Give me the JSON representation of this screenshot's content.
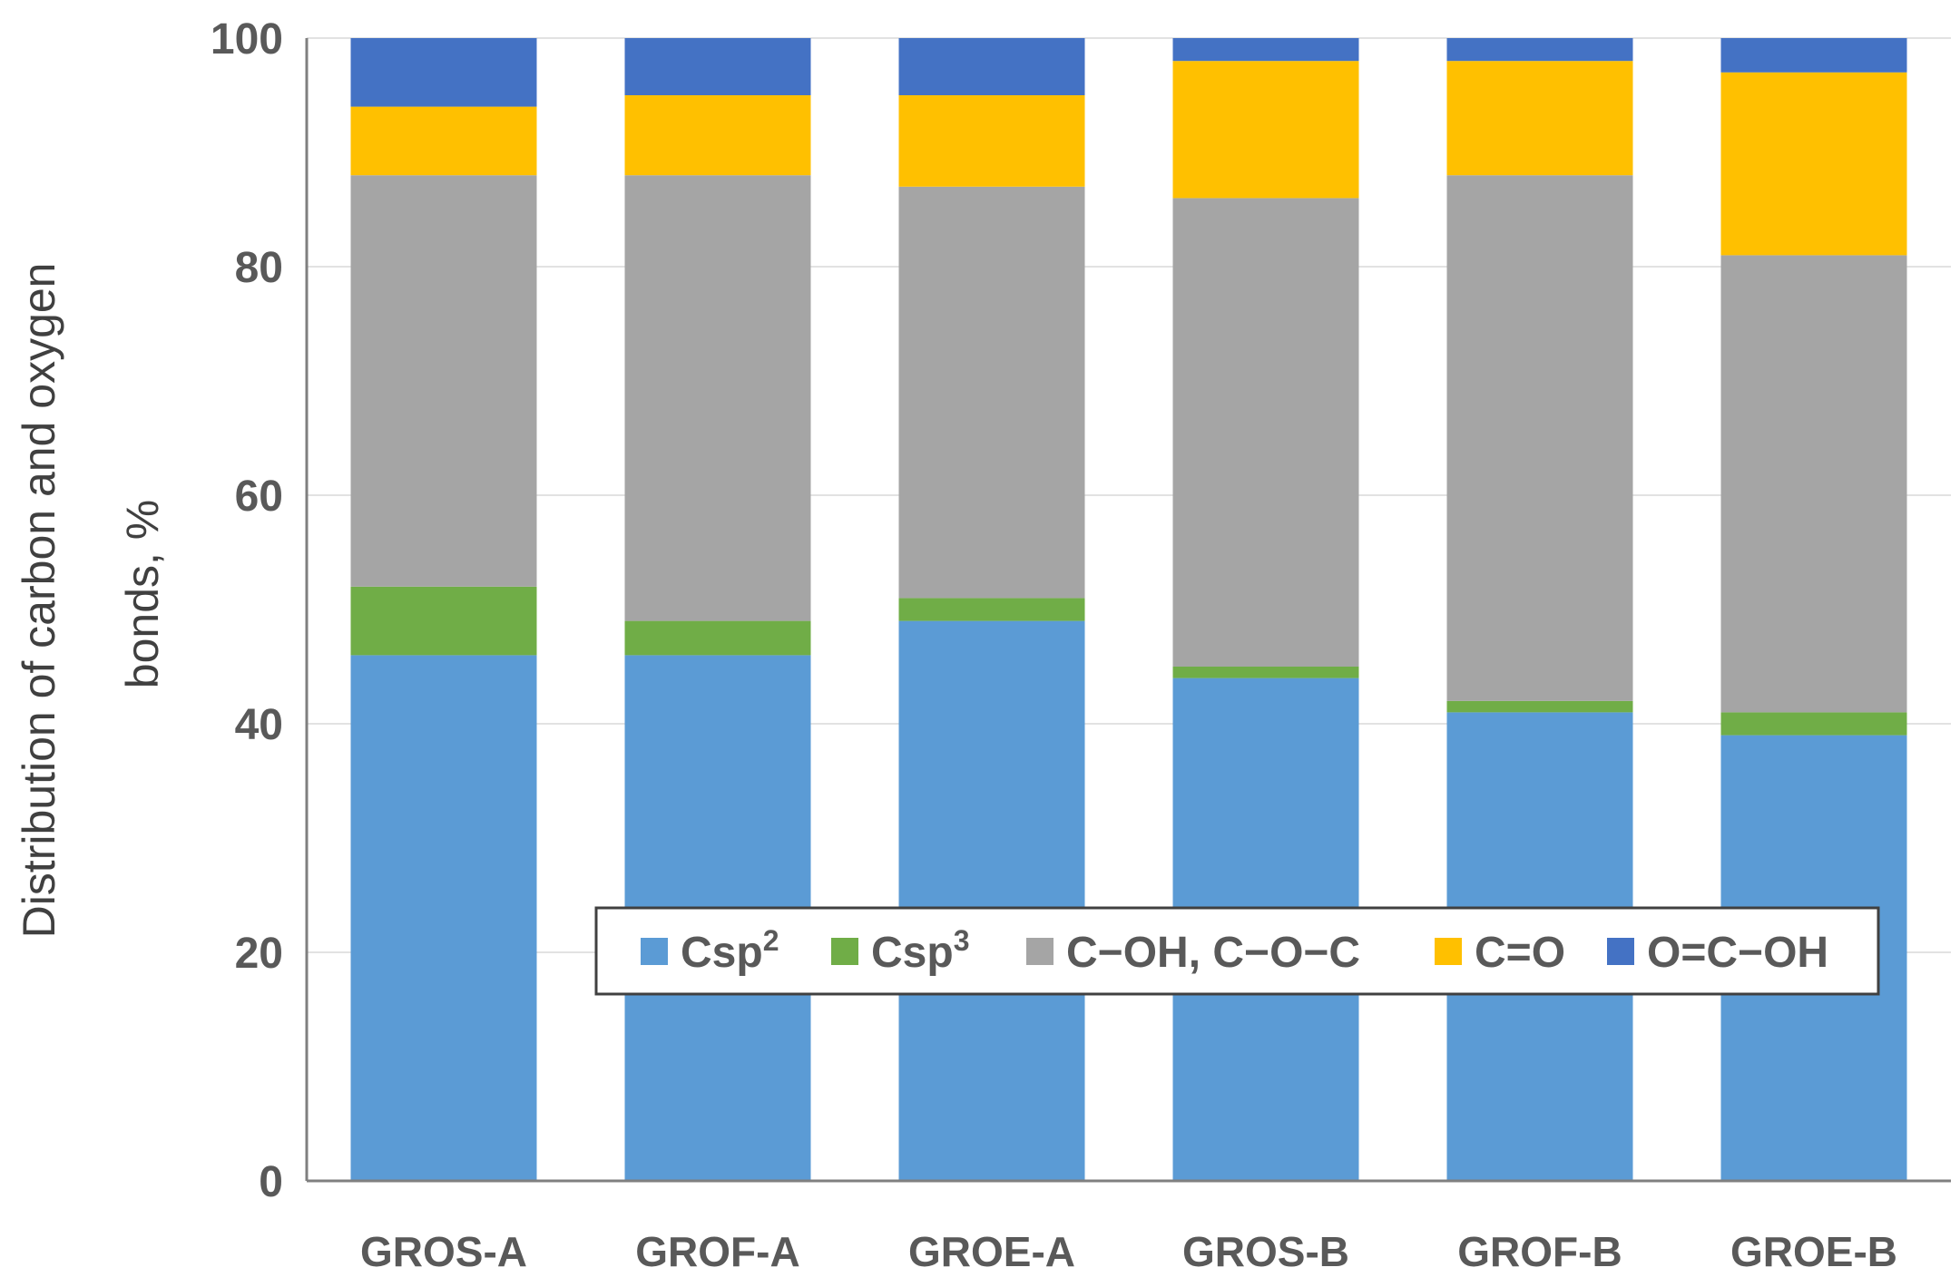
{
  "chart_data": {
    "type": "bar",
    "stacked": true,
    "title": "",
    "xlabel": "",
    "ylabel_lines": [
      "Distribution of carbon and oxygen",
      "bonds, %"
    ],
    "ylim": [
      0,
      100
    ],
    "yticks": [
      "0",
      "20",
      "40",
      "60",
      "80",
      "100"
    ],
    "grid": true,
    "legend_position": "bottom-right inside",
    "categories": [
      "GROS-A",
      "GROF-A",
      "GROE-A",
      "GROS-B",
      "GROF-B",
      "GROE-B"
    ],
    "series": [
      {
        "name": "Csp2",
        "label_base": "Csp",
        "label_sup": "2",
        "color": "#5b9bd5",
        "values": [
          46,
          46,
          49,
          44,
          41,
          39
        ]
      },
      {
        "name": "Csp3",
        "label_base": "Csp",
        "label_sup": "3",
        "color": "#70ad47",
        "values": [
          6,
          3,
          2,
          1,
          1,
          2
        ]
      },
      {
        "name": "C−OH, C−O−C",
        "label_base": "C−OH, C−O−C",
        "label_sup": "",
        "color": "#a5a5a5",
        "values": [
          36,
          39,
          36,
          41,
          46,
          40
        ]
      },
      {
        "name": "C=O",
        "label_base": "C=O",
        "label_sup": "",
        "color": "#ffc000",
        "values": [
          6,
          7,
          8,
          12,
          10,
          16
        ]
      },
      {
        "name": "O=C−OH",
        "label_base": "O=C−OH",
        "label_sup": "",
        "color": "#4472c4",
        "values": [
          6,
          5,
          5,
          2,
          2,
          3
        ]
      }
    ]
  }
}
